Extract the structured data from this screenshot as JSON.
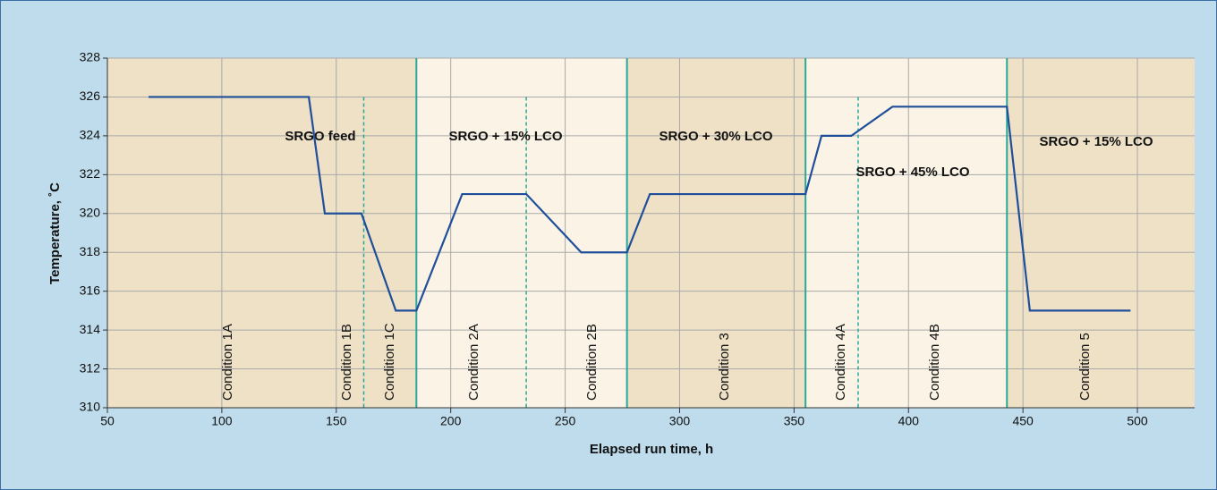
{
  "chart_data": {
    "type": "line",
    "x_label": "Elapsed run time, h",
    "y_label": "Temperature, ˚C",
    "xlim": [
      50,
      525
    ],
    "ylim": [
      310,
      328
    ],
    "xticks": [
      50,
      100,
      150,
      200,
      250,
      300,
      350,
      400,
      450,
      500
    ],
    "yticks": [
      310,
      312,
      314,
      316,
      318,
      320,
      322,
      324,
      326,
      328
    ],
    "grid": true,
    "series": [
      {
        "color": "#1f4f9a",
        "x": [
          68,
          138,
          145,
          161,
          176,
          185,
          205,
          233,
          257,
          277,
          287,
          355,
          362,
          375,
          393,
          443,
          453,
          497
        ],
        "values": [
          326,
          326,
          320,
          320,
          315,
          315,
          321,
          321,
          318,
          318,
          321,
          321,
          324,
          324,
          325.5,
          325.5,
          315,
          315
        ]
      }
    ],
    "phase_boundaries": [
      185,
      277,
      355,
      443
    ],
    "condition_boundaries": [
      162,
      233,
      378
    ],
    "boundary_color": "#2aa89a",
    "annotations": [
      "SRGO feed",
      "SRGO + 15% LCO",
      "SRGO + 30% LCO",
      "SRGO + 45% LCO",
      "SRGO + 15% LCO"
    ],
    "conditions": [
      "Condition 1A",
      "Condition 1B",
      "Condition 1C",
      "Condition 2A",
      "Condition 2B",
      "Condition 3",
      "Condition 4A",
      "Condition 4B",
      "Condition 5"
    ]
  }
}
